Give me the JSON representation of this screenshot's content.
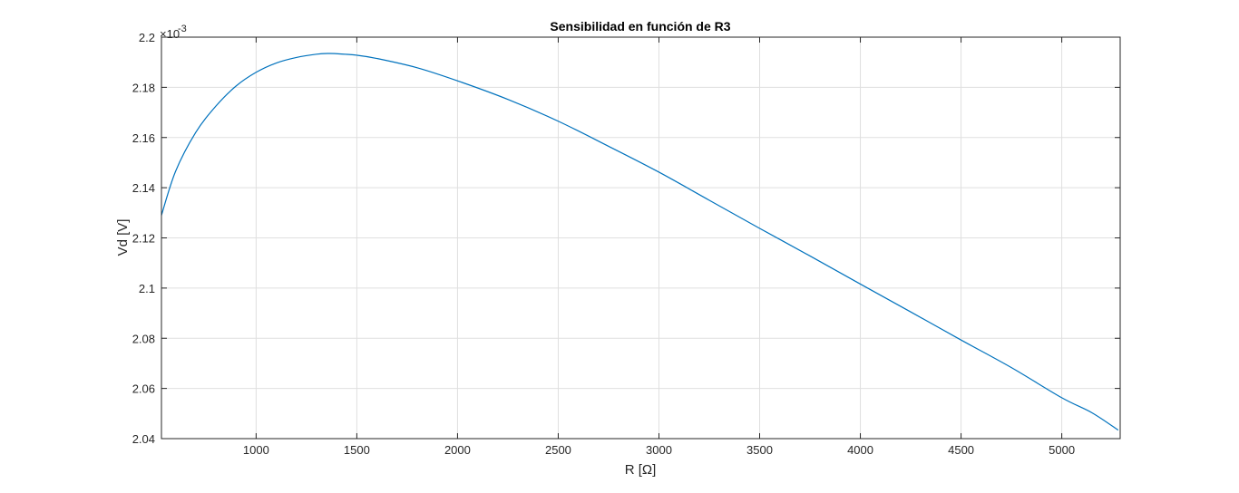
{
  "chart_data": {
    "type": "line",
    "title": "Sensibilidad en función de R3",
    "xlabel": "R [Ω]",
    "ylabel": "Vd [V]",
    "y_exponent_base": "×10",
    "y_exponent": "-3",
    "xlim": [
      530,
      5290
    ],
    "ylim": [
      2.04,
      2.2
    ],
    "xticks": [
      1000,
      1500,
      2000,
      2500,
      3000,
      3500,
      4000,
      4500,
      5000
    ],
    "xtick_labels": [
      "1000",
      "1500",
      "2000",
      "2500",
      "3000",
      "3500",
      "4000",
      "4500",
      "5000"
    ],
    "yticks": [
      2.04,
      2.06,
      2.08,
      2.1,
      2.12,
      2.14,
      2.16,
      2.18,
      2.2
    ],
    "ytick_labels": [
      "2.04",
      "2.06",
      "2.08",
      "2.1",
      "2.12",
      "2.14",
      "2.16",
      "2.18",
      "2.2"
    ],
    "grid": true,
    "series": [
      {
        "color": "#0072bd",
        "x": [
          530,
          600,
          700,
          800,
          900,
          1000,
          1100,
          1200,
          1300,
          1360,
          1400,
          1500,
          1600,
          1800,
          2000,
          2250,
          2500,
          2750,
          3000,
          3250,
          3500,
          3750,
          4000,
          4250,
          4500,
          4750,
          5000,
          5150,
          5280
        ],
        "y": [
          2.129,
          2.1465,
          2.162,
          2.1725,
          2.1805,
          2.186,
          2.1897,
          2.1919,
          2.1932,
          2.1935,
          2.1934,
          2.1928,
          2.1915,
          2.1878,
          2.1826,
          2.1752,
          2.1665,
          2.1565,
          2.1462,
          2.135,
          2.1238,
          2.1128,
          2.1016,
          2.0905,
          2.0793,
          2.0683,
          2.0563,
          2.0503,
          2.0434
        ]
      }
    ]
  }
}
